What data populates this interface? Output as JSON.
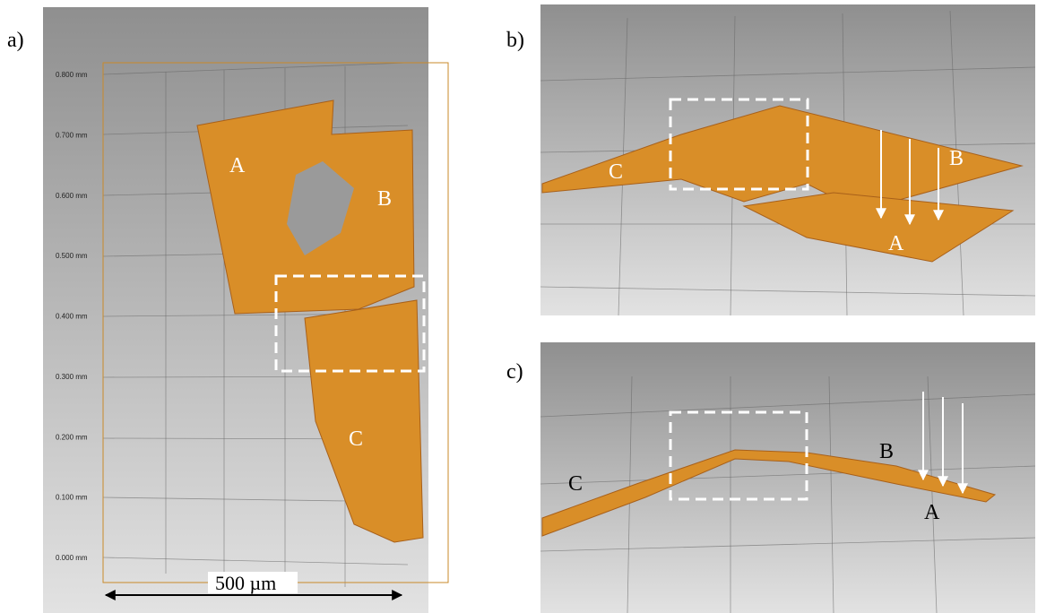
{
  "panels": [
    {
      "label": "a)",
      "annotations": [
        "A",
        "B",
        "C"
      ],
      "scale_bar": "500 µm",
      "axis_labels": [
        "0.800 mm",
        "0.700 mm",
        "0.600 mm",
        "0.500 mm",
        "0.400 mm",
        "0.300 mm",
        "0.200 mm",
        "0.100 mm",
        "0.000 mm"
      ]
    },
    {
      "label": "b)",
      "annotations": [
        "C",
        "B",
        "A"
      ]
    },
    {
      "label": "c)",
      "annotations": [
        "B",
        "C",
        "A"
      ]
    }
  ]
}
